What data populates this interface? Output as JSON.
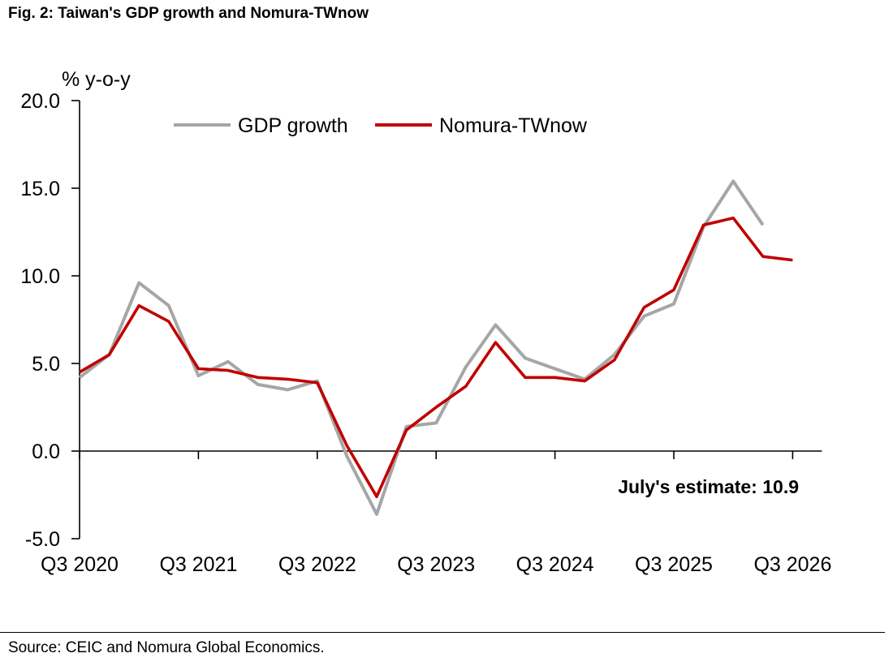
{
  "figure": {
    "title": "Fig. 2: Taiwan's GDP growth and Nomura-TWnow",
    "source": "Source: CEIC and Nomura Global Economics."
  },
  "chart_data": {
    "type": "line",
    "ylabel": "% y-o-y",
    "xlabel": "",
    "ylim": [
      -5.0,
      20.0
    ],
    "yticks": [
      -5.0,
      0.0,
      5.0,
      10.0,
      15.0,
      20.0
    ],
    "ytick_labels": [
      "-5.0",
      "0.0",
      "5.0",
      "10.0",
      "15.0",
      "20.0"
    ],
    "x": [
      "Q3 2020",
      "Q4 2020",
      "Q1 2021",
      "Q2 2021",
      "Q3 2021",
      "Q4 2021",
      "Q1 2022",
      "Q2 2022",
      "Q3 2022",
      "Q4 2022",
      "Q1 2023",
      "Q2 2023",
      "Q3 2023",
      "Q4 2023",
      "Q1 2024",
      "Q2 2024",
      "Q3 2024",
      "Q4 2024",
      "Q1 2025",
      "Q2 2025",
      "Q3 2025",
      "Q4 2025",
      "Q1 2026",
      "Q2 2026",
      "Q3 2026"
    ],
    "xtick_labels": [
      "Q3 2020",
      "Q3 2021",
      "Q3 2022",
      "Q3 2023",
      "Q3 2024",
      "Q3 2025",
      "Q3 2026"
    ],
    "grid": false,
    "legend_position": "top",
    "series": [
      {
        "name": "GDP growth",
        "color": "#a6a6a6",
        "values": [
          4.2,
          5.5,
          9.6,
          8.3,
          4.3,
          5.1,
          3.8,
          3.5,
          4.0,
          -0.3,
          -3.6,
          1.4,
          1.6,
          4.8,
          7.2,
          5.3,
          4.7,
          4.1,
          5.5,
          7.7,
          8.4,
          12.8,
          15.4,
          12.9,
          null
        ]
      },
      {
        "name": "Nomura-TWnow",
        "color": "#c00000",
        "values": [
          4.5,
          5.5,
          8.3,
          7.4,
          4.7,
          4.6,
          4.2,
          4.1,
          3.9,
          0.3,
          -2.6,
          1.2,
          2.5,
          3.7,
          6.2,
          4.2,
          4.2,
          4.0,
          5.2,
          8.2,
          9.2,
          12.9,
          13.3,
          11.1,
          10.9
        ]
      }
    ],
    "annotation": "July's estimate: 10.9"
  }
}
